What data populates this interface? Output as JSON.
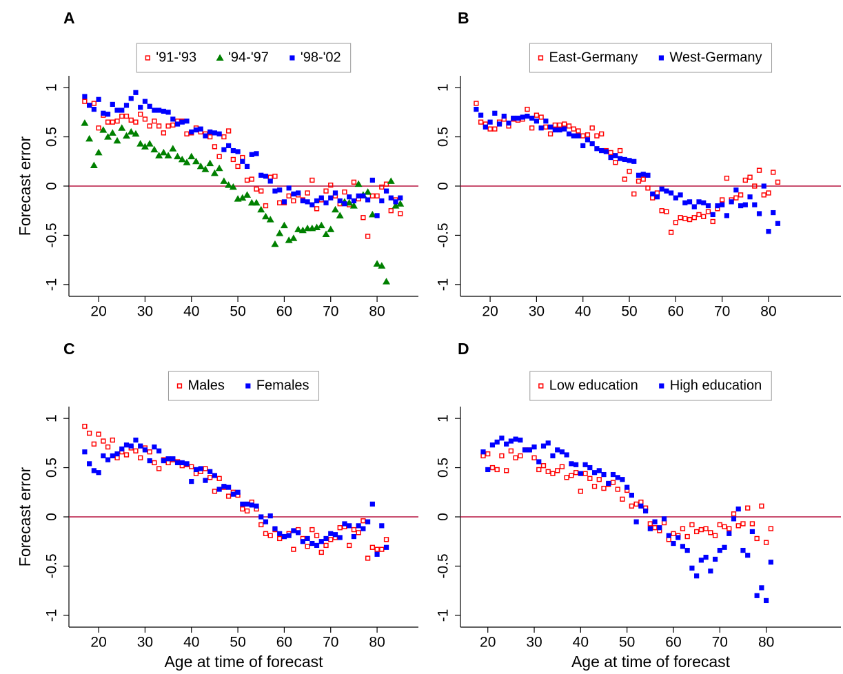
{
  "chart_data": [
    {
      "type": "scatter",
      "title": "A",
      "y_label": "Forecast error",
      "x": [
        17,
        18,
        19,
        20,
        21,
        22,
        23,
        24,
        25,
        26,
        27,
        28,
        29,
        30,
        31,
        32,
        33,
        34,
        35,
        36,
        37,
        38,
        39,
        40,
        41,
        42,
        43,
        44,
        45,
        46,
        47,
        48,
        49,
        50,
        51,
        52,
        53,
        54,
        55,
        56,
        57,
        58,
        59,
        60,
        61,
        62,
        63,
        64,
        65,
        66,
        67,
        68,
        69,
        70,
        71,
        72,
        73,
        74,
        75,
        76,
        77,
        78,
        79,
        80,
        81,
        82,
        83,
        84,
        85
      ],
      "series": [
        {
          "name": "'91-'93",
          "color": "#ff0000",
          "marker": "hollow-square",
          "values": [
            0.86,
            0.82,
            0.84,
            0.59,
            0.72,
            0.65,
            0.65,
            0.66,
            0.71,
            0.71,
            0.67,
            0.65,
            0.73,
            0.68,
            0.61,
            0.66,
            0.61,
            0.54,
            0.61,
            0.62,
            0.66,
            0.66,
            0.53,
            0.54,
            0.59,
            0.55,
            0.53,
            0.5,
            0.4,
            0.3,
            0.5,
            0.56,
            0.27,
            0.2,
            0.29,
            0.06,
            0.07,
            -0.03,
            -0.05,
            -0.2,
            0.09,
            0.1,
            -0.17,
            -0.17,
            -0.1,
            -0.15,
            -0.09,
            -0.14,
            -0.07,
            0.06,
            -0.23,
            -0.14,
            -0.05,
            0.01,
            -0.1,
            -0.18,
            -0.06,
            -0.19,
            0.04,
            -0.13,
            -0.32,
            -0.51,
            -0.1,
            -0.1,
            -0.01,
            0.02,
            -0.25,
            -0.14,
            -0.28
          ]
        },
        {
          "name": "'94-'97",
          "color": "#008000",
          "marker": "triangle",
          "values": [
            0.64,
            0.48,
            0.21,
            0.34,
            0.57,
            0.5,
            0.54,
            0.46,
            0.59,
            0.51,
            0.55,
            0.53,
            0.43,
            0.4,
            0.43,
            0.37,
            0.31,
            0.34,
            0.31,
            0.38,
            0.3,
            0.27,
            0.24,
            0.3,
            0.25,
            0.2,
            0.17,
            0.23,
            0.13,
            0.18,
            0.05,
            0.01,
            -0.01,
            -0.13,
            -0.12,
            -0.09,
            -0.17,
            -0.17,
            -0.24,
            -0.31,
            -0.34,
            -0.59,
            -0.48,
            -0.4,
            -0.55,
            -0.53,
            -0.44,
            -0.45,
            -0.43,
            -0.43,
            -0.42,
            -0.4,
            -0.49,
            -0.44,
            -0.24,
            -0.3,
            -0.16,
            -0.17,
            -0.2,
            0.02,
            -0.09,
            -0.06,
            -0.29,
            -0.79,
            -0.81,
            -0.97,
            0.05,
            -0.2,
            -0.18
          ]
        },
        {
          "name": "'98-'02",
          "color": "#0000ff",
          "marker": "square",
          "values": [
            0.91,
            0.82,
            0.78,
            0.88,
            0.74,
            0.73,
            0.83,
            0.77,
            0.77,
            0.82,
            0.89,
            0.95,
            0.8,
            0.86,
            0.81,
            0.77,
            0.77,
            0.76,
            0.75,
            0.68,
            0.63,
            0.65,
            0.66,
            0.55,
            0.57,
            0.58,
            0.51,
            0.55,
            0.54,
            0.53,
            0.37,
            0.41,
            0.36,
            0.35,
            0.25,
            0.2,
            0.32,
            0.33,
            0.11,
            0.1,
            0.05,
            -0.05,
            -0.04,
            -0.16,
            -0.02,
            -0.08,
            -0.07,
            -0.15,
            -0.16,
            -0.19,
            -0.15,
            -0.12,
            -0.17,
            -0.12,
            -0.07,
            -0.15,
            -0.18,
            -0.11,
            -0.15,
            -0.1,
            -0.1,
            -0.14,
            0.06,
            -0.3,
            -0.15,
            -0.05,
            -0.12,
            -0.16,
            -0.12
          ]
        }
      ],
      "xlim": [
        13.6,
        88.9
      ],
      "ylim": [
        -1.12,
        1.12
      ],
      "xticks": [
        20,
        30,
        40,
        50,
        60,
        70,
        80
      ],
      "yticks": [
        -1,
        -0.5,
        0,
        0.5,
        1
      ],
      "reference_line": 0,
      "reference_color": "#b5123e",
      "legend": "top"
    },
    {
      "type": "scatter",
      "title": "B",
      "x": [
        17,
        18,
        19,
        20,
        21,
        22,
        23,
        24,
        25,
        26,
        27,
        28,
        29,
        30,
        31,
        32,
        33,
        34,
        35,
        36,
        37,
        38,
        39,
        40,
        41,
        42,
        43,
        44,
        45,
        46,
        47,
        48,
        49,
        50,
        51,
        52,
        53,
        54,
        55,
        56,
        57,
        58,
        59,
        60,
        61,
        62,
        63,
        64,
        65,
        66,
        67,
        68,
        69,
        70,
        71,
        72,
        73,
        74,
        75,
        76,
        77,
        78,
        79,
        80,
        81,
        82
      ],
      "series": [
        {
          "name": "East-Germany",
          "color": "#ff0000",
          "marker": "hollow-square",
          "values": [
            0.84,
            0.65,
            0.63,
            0.58,
            0.58,
            0.65,
            0.68,
            0.61,
            0.68,
            0.67,
            0.68,
            0.78,
            0.59,
            0.72,
            0.7,
            0.6,
            0.53,
            0.62,
            0.62,
            0.63,
            0.61,
            0.58,
            0.56,
            0.51,
            0.52,
            0.59,
            0.51,
            0.53,
            0.36,
            0.34,
            0.24,
            0.36,
            0.07,
            0.15,
            -0.08,
            0.05,
            0.07,
            -0.02,
            -0.12,
            -0.07,
            -0.25,
            -0.26,
            -0.47,
            -0.37,
            -0.32,
            -0.33,
            -0.34,
            -0.32,
            -0.29,
            -0.31,
            -0.26,
            -0.36,
            -0.23,
            -0.14,
            0.08,
            -0.14,
            -0.12,
            -0.09,
            0.06,
            0.09,
            0.0,
            0.16,
            -0.09,
            -0.07,
            0.14,
            0.04
          ]
        },
        {
          "name": "West-Germany",
          "color": "#0000ff",
          "marker": "square",
          "values": [
            0.78,
            0.72,
            0.6,
            0.65,
            0.74,
            0.63,
            0.71,
            0.64,
            0.69,
            0.69,
            0.7,
            0.71,
            0.69,
            0.66,
            0.59,
            0.66,
            0.6,
            0.57,
            0.57,
            0.58,
            0.53,
            0.51,
            0.51,
            0.41,
            0.47,
            0.43,
            0.38,
            0.36,
            0.35,
            0.29,
            0.31,
            0.28,
            0.27,
            0.26,
            0.25,
            0.11,
            0.12,
            0.11,
            -0.08,
            -0.11,
            -0.03,
            -0.05,
            -0.07,
            -0.12,
            -0.09,
            -0.17,
            -0.16,
            -0.21,
            -0.16,
            -0.17,
            -0.2,
            -0.29,
            -0.2,
            -0.19,
            -0.3,
            -0.16,
            -0.04,
            -0.2,
            -0.19,
            -0.11,
            -0.19,
            -0.28,
            0.0,
            -0.46,
            -0.27,
            -0.38
          ]
        }
      ],
      "xlim": [
        13.6,
        95.6
      ],
      "ylim": [
        -1.12,
        1.12
      ],
      "xticks": [
        20,
        30,
        40,
        50,
        60,
        70,
        80
      ],
      "yticks": [
        -1,
        -0.5,
        0,
        0.5,
        1
      ],
      "reference_line": 0,
      "reference_color": "#b5123e",
      "legend": "top"
    },
    {
      "type": "scatter",
      "title": "C",
      "y_label": "Forecast error",
      "x_label": "Age at time of forecast",
      "x": [
        17,
        18,
        19,
        20,
        21,
        22,
        23,
        24,
        25,
        26,
        27,
        28,
        29,
        30,
        31,
        32,
        33,
        34,
        35,
        36,
        37,
        38,
        39,
        40,
        41,
        42,
        43,
        44,
        45,
        46,
        47,
        48,
        49,
        50,
        51,
        52,
        53,
        54,
        55,
        56,
        57,
        58,
        59,
        60,
        61,
        62,
        63,
        64,
        65,
        66,
        67,
        68,
        69,
        70,
        71,
        72,
        73,
        74,
        75,
        76,
        77,
        78,
        79,
        80,
        81,
        82
      ],
      "series": [
        {
          "name": "Males",
          "color": "#ff0000",
          "marker": "hollow-square",
          "values": [
            0.92,
            0.85,
            0.74,
            0.84,
            0.77,
            0.71,
            0.78,
            0.6,
            0.66,
            0.63,
            0.7,
            0.67,
            0.6,
            0.7,
            0.66,
            0.55,
            0.49,
            0.58,
            0.55,
            0.58,
            0.56,
            0.52,
            0.53,
            0.51,
            0.44,
            0.46,
            0.49,
            0.4,
            0.26,
            0.39,
            0.3,
            0.21,
            0.25,
            0.22,
            0.08,
            0.06,
            0.15,
            0.08,
            -0.08,
            -0.17,
            -0.19,
            -0.13,
            -0.22,
            -0.2,
            -0.17,
            -0.33,
            -0.13,
            -0.22,
            -0.3,
            -0.13,
            -0.19,
            -0.36,
            -0.29,
            -0.23,
            -0.21,
            -0.11,
            -0.1,
            -0.29,
            -0.13,
            -0.16,
            -0.04,
            -0.42,
            -0.31,
            -0.33,
            -0.33,
            -0.23
          ]
        },
        {
          "name": "Females",
          "color": "#0000ff",
          "marker": "square",
          "values": [
            0.66,
            0.54,
            0.47,
            0.45,
            0.62,
            0.58,
            0.62,
            0.64,
            0.69,
            0.73,
            0.72,
            0.78,
            0.72,
            0.68,
            0.57,
            0.71,
            0.67,
            0.57,
            0.59,
            0.59,
            0.55,
            0.55,
            0.54,
            0.36,
            0.48,
            0.49,
            0.37,
            0.46,
            0.42,
            0.28,
            0.31,
            0.3,
            0.23,
            0.25,
            0.13,
            0.13,
            0.12,
            0.11,
            0.0,
            -0.05,
            0.01,
            -0.12,
            -0.17,
            -0.2,
            -0.19,
            -0.14,
            -0.16,
            -0.25,
            -0.22,
            -0.27,
            -0.29,
            -0.25,
            -0.22,
            -0.17,
            -0.18,
            -0.21,
            -0.07,
            -0.09,
            -0.2,
            -0.09,
            -0.12,
            -0.05,
            0.13,
            -0.38,
            -0.09,
            -0.31
          ]
        }
      ],
      "xlim": [
        13.6,
        88.9
      ],
      "ylim": [
        -1.12,
        1.12
      ],
      "xticks": [
        20,
        30,
        40,
        50,
        60,
        70,
        80
      ],
      "yticks": [
        -1,
        -0.5,
        0,
        0.5,
        1
      ],
      "reference_line": 0,
      "reference_color": "#b5123e",
      "legend": "top"
    },
    {
      "type": "scatter",
      "title": "D",
      "x_label": "Age at time of forecast",
      "x": [
        19,
        20,
        21,
        22,
        23,
        24,
        25,
        26,
        27,
        28,
        29,
        30,
        31,
        32,
        33,
        34,
        35,
        36,
        37,
        38,
        39,
        40,
        41,
        42,
        43,
        44,
        45,
        46,
        47,
        48,
        49,
        50,
        51,
        52,
        53,
        54,
        55,
        56,
        57,
        58,
        59,
        60,
        61,
        62,
        63,
        64,
        65,
        66,
        67,
        68,
        69,
        70,
        71,
        72,
        73,
        74,
        75,
        76,
        77,
        78,
        79,
        80,
        81
      ],
      "series": [
        {
          "name": "Low education",
          "color": "#ff0000",
          "marker": "hollow-square",
          "values": [
            0.62,
            0.64,
            0.5,
            0.48,
            0.62,
            0.47,
            0.67,
            0.6,
            0.62,
            0.68,
            0.68,
            0.6,
            0.48,
            0.52,
            0.46,
            0.44,
            0.47,
            0.51,
            0.4,
            0.42,
            0.45,
            0.26,
            0.44,
            0.39,
            0.31,
            0.38,
            0.29,
            0.33,
            0.35,
            0.28,
            0.18,
            0.27,
            0.11,
            0.13,
            0.15,
            0.09,
            -0.07,
            -0.11,
            -0.14,
            -0.06,
            -0.23,
            -0.17,
            -0.19,
            -0.12,
            -0.2,
            -0.08,
            -0.15,
            -0.13,
            -0.12,
            -0.16,
            -0.19,
            -0.08,
            -0.1,
            -0.12,
            0.03,
            -0.09,
            -0.07,
            0.09,
            -0.07,
            -0.22,
            0.11,
            -0.26,
            -0.12
          ]
        },
        {
          "name": "High education",
          "color": "#0000ff",
          "marker": "square",
          "values": [
            0.66,
            0.48,
            0.73,
            0.76,
            0.8,
            0.74,
            0.77,
            0.79,
            0.78,
            0.68,
            0.68,
            0.71,
            0.56,
            0.72,
            0.75,
            0.62,
            0.68,
            0.66,
            0.63,
            0.54,
            0.53,
            0.44,
            0.53,
            0.5,
            0.45,
            0.47,
            0.43,
            0.34,
            0.43,
            0.4,
            0.38,
            0.3,
            0.22,
            -0.05,
            0.11,
            0.06,
            -0.12,
            -0.05,
            -0.11,
            -0.02,
            -0.19,
            -0.27,
            -0.21,
            -0.3,
            -0.34,
            -0.52,
            -0.6,
            -0.44,
            -0.41,
            -0.55,
            -0.43,
            -0.34,
            -0.31,
            -0.17,
            -0.02,
            0.08,
            -0.34,
            -0.39,
            -0.15,
            -0.8,
            -0.72,
            -0.85,
            -0.46
          ]
        }
      ],
      "xlim": [
        14.1,
        96.1
      ],
      "ylim": [
        -1.12,
        1.12
      ],
      "xticks": [
        20,
        30,
        40,
        50,
        60,
        70,
        80
      ],
      "yticks": [
        -1,
        -0.5,
        0,
        0.5,
        1
      ],
      "reference_line": 0,
      "reference_color": "#b5123e",
      "legend": "top"
    }
  ]
}
